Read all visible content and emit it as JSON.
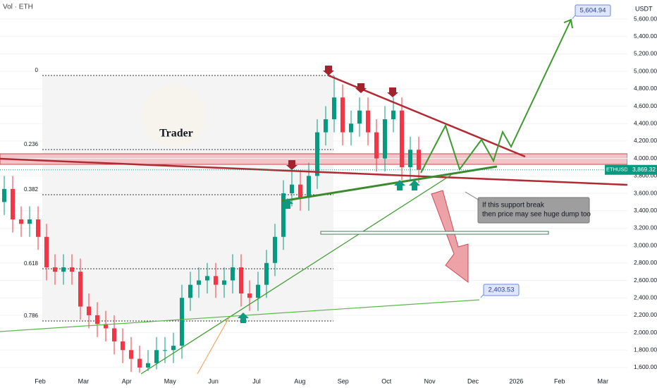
{
  "chart_data": {
    "type": "candlestick",
    "title": "Vol · ETH",
    "y_axis_label": "USDT",
    "symbol": "ETHUSDT",
    "up_color": "#089981",
    "down_color": "#f23645",
    "ylim": [
      1527,
      5819
    ],
    "yticks": [
      {
        "value": 1600,
        "label": "1,600.00"
      },
      {
        "value": 1800,
        "label": "1,800.00"
      },
      {
        "value": 2000,
        "label": "2,000.00"
      },
      {
        "value": 2200,
        "label": "2,200.00"
      },
      {
        "value": 2400,
        "label": "2,400.00"
      },
      {
        "value": 2600,
        "label": "2,600.00"
      },
      {
        "value": 2800,
        "label": "2,800.00"
      },
      {
        "value": 3000,
        "label": "3,000.00"
      },
      {
        "value": 3200,
        "label": "3,200.00"
      },
      {
        "value": 3400,
        "label": "3,400.00"
      },
      {
        "value": 3600,
        "label": "3,600.00"
      },
      {
        "value": 3800,
        "label": "3,800.00"
      },
      {
        "value": 4000,
        "label": "4,000.00"
      },
      {
        "value": 4200,
        "label": "4,200.00"
      },
      {
        "value": 4400,
        "label": "4,400.00"
      },
      {
        "value": 4600,
        "label": "4,600.00"
      },
      {
        "value": 4800,
        "label": "4,800.00"
      },
      {
        "value": 5000,
        "label": "5,000.00"
      },
      {
        "value": 5200,
        "label": "5,200.00"
      },
      {
        "value": 5400,
        "label": "5,400.00"
      },
      {
        "value": 5600,
        "label": "5,600.00"
      }
    ],
    "categories": [
      "Feb",
      "Mar",
      "Apr",
      "May",
      "Jun",
      "Jul",
      "Aug",
      "Sep",
      "Oct",
      "Nov",
      "Dec",
      "2026",
      "Feb",
      "Mar"
    ],
    "open": [
      3500,
      3650,
      3300,
      3250,
      3300,
      3100,
      2750,
      2700,
      2750,
      2700,
      2300,
      2200,
      2100,
      2050,
      1900,
      1800,
      1700,
      1600,
      1650,
      1800,
      1800,
      1850,
      2400,
      2550,
      2600,
      2650,
      2550,
      2600,
      2750,
      2450,
      2400,
      2550,
      2800,
      3100,
      3600,
      3700,
      3550,
      3800,
      4300,
      4450,
      4700,
      4300,
      4400,
      4550,
      4300,
      4000,
      4450,
      4550,
      3900,
      4100
    ],
    "high": [
      3800,
      3800,
      3450,
      3450,
      3450,
      3250,
      2900,
      2900,
      2900,
      2850,
      2450,
      2350,
      2250,
      2200,
      2050,
      1950,
      1850,
      1800,
      1950,
      1950,
      2000,
      2550,
      2700,
      2750,
      2800,
      2800,
      2750,
      2900,
      2900,
      2600,
      2700,
      2950,
      3250,
      3750,
      3850,
      3850,
      3950,
      4450,
      4600,
      4950,
      4850,
      4550,
      4700,
      4700,
      4450,
      4600,
      4700,
      4700,
      4250,
      4250
    ],
    "low": [
      3350,
      3150,
      3100,
      3100,
      2950,
      2600,
      2550,
      2550,
      2550,
      2150,
      2050,
      1950,
      1900,
      1750,
      1650,
      1550,
      1540,
      1560,
      1580,
      1650,
      1650,
      1700,
      2250,
      2400,
      2450,
      2400,
      2400,
      2450,
      2300,
      2250,
      2250,
      2400,
      2650,
      2950,
      3450,
      3400,
      3400,
      3650,
      4150,
      4300,
      4150,
      4150,
      4250,
      4150,
      3850,
      3850,
      4300,
      3750,
      3750,
      3720
    ],
    "close": [
      3650,
      3300,
      3250,
      3300,
      3100,
      2750,
      2700,
      2750,
      2700,
      2300,
      2200,
      2100,
      2050,
      1900,
      1800,
      1700,
      1600,
      1650,
      1800,
      1800,
      1850,
      2400,
      2550,
      2600,
      2650,
      2550,
      2600,
      2750,
      2450,
      2400,
      2550,
      2800,
      3100,
      3600,
      3700,
      3550,
      3800,
      4300,
      4450,
      4700,
      4300,
      4400,
      4550,
      4300,
      4000,
      4450,
      4550,
      3900,
      4100,
      3870
    ],
    "last_price": {
      "value": 3869.32,
      "label": "3,869.32"
    },
    "fib_levels": [
      {
        "value": 4952,
        "label": "0"
      },
      {
        "value": 4102,
        "label": "0.236"
      },
      {
        "value": 3584,
        "label": "0.382"
      },
      {
        "value": 2734,
        "label": "0.618"
      },
      {
        "value": 2134,
        "label": "0.786"
      }
    ],
    "targets": [
      {
        "value": 5604.94,
        "label": "5,604.94"
      },
      {
        "value": 2403.53,
        "label": "2,403.53"
      }
    ],
    "annotation": [
      "If this support break",
      "then price may see huge dump too"
    ],
    "logo_text": "Trader"
  }
}
